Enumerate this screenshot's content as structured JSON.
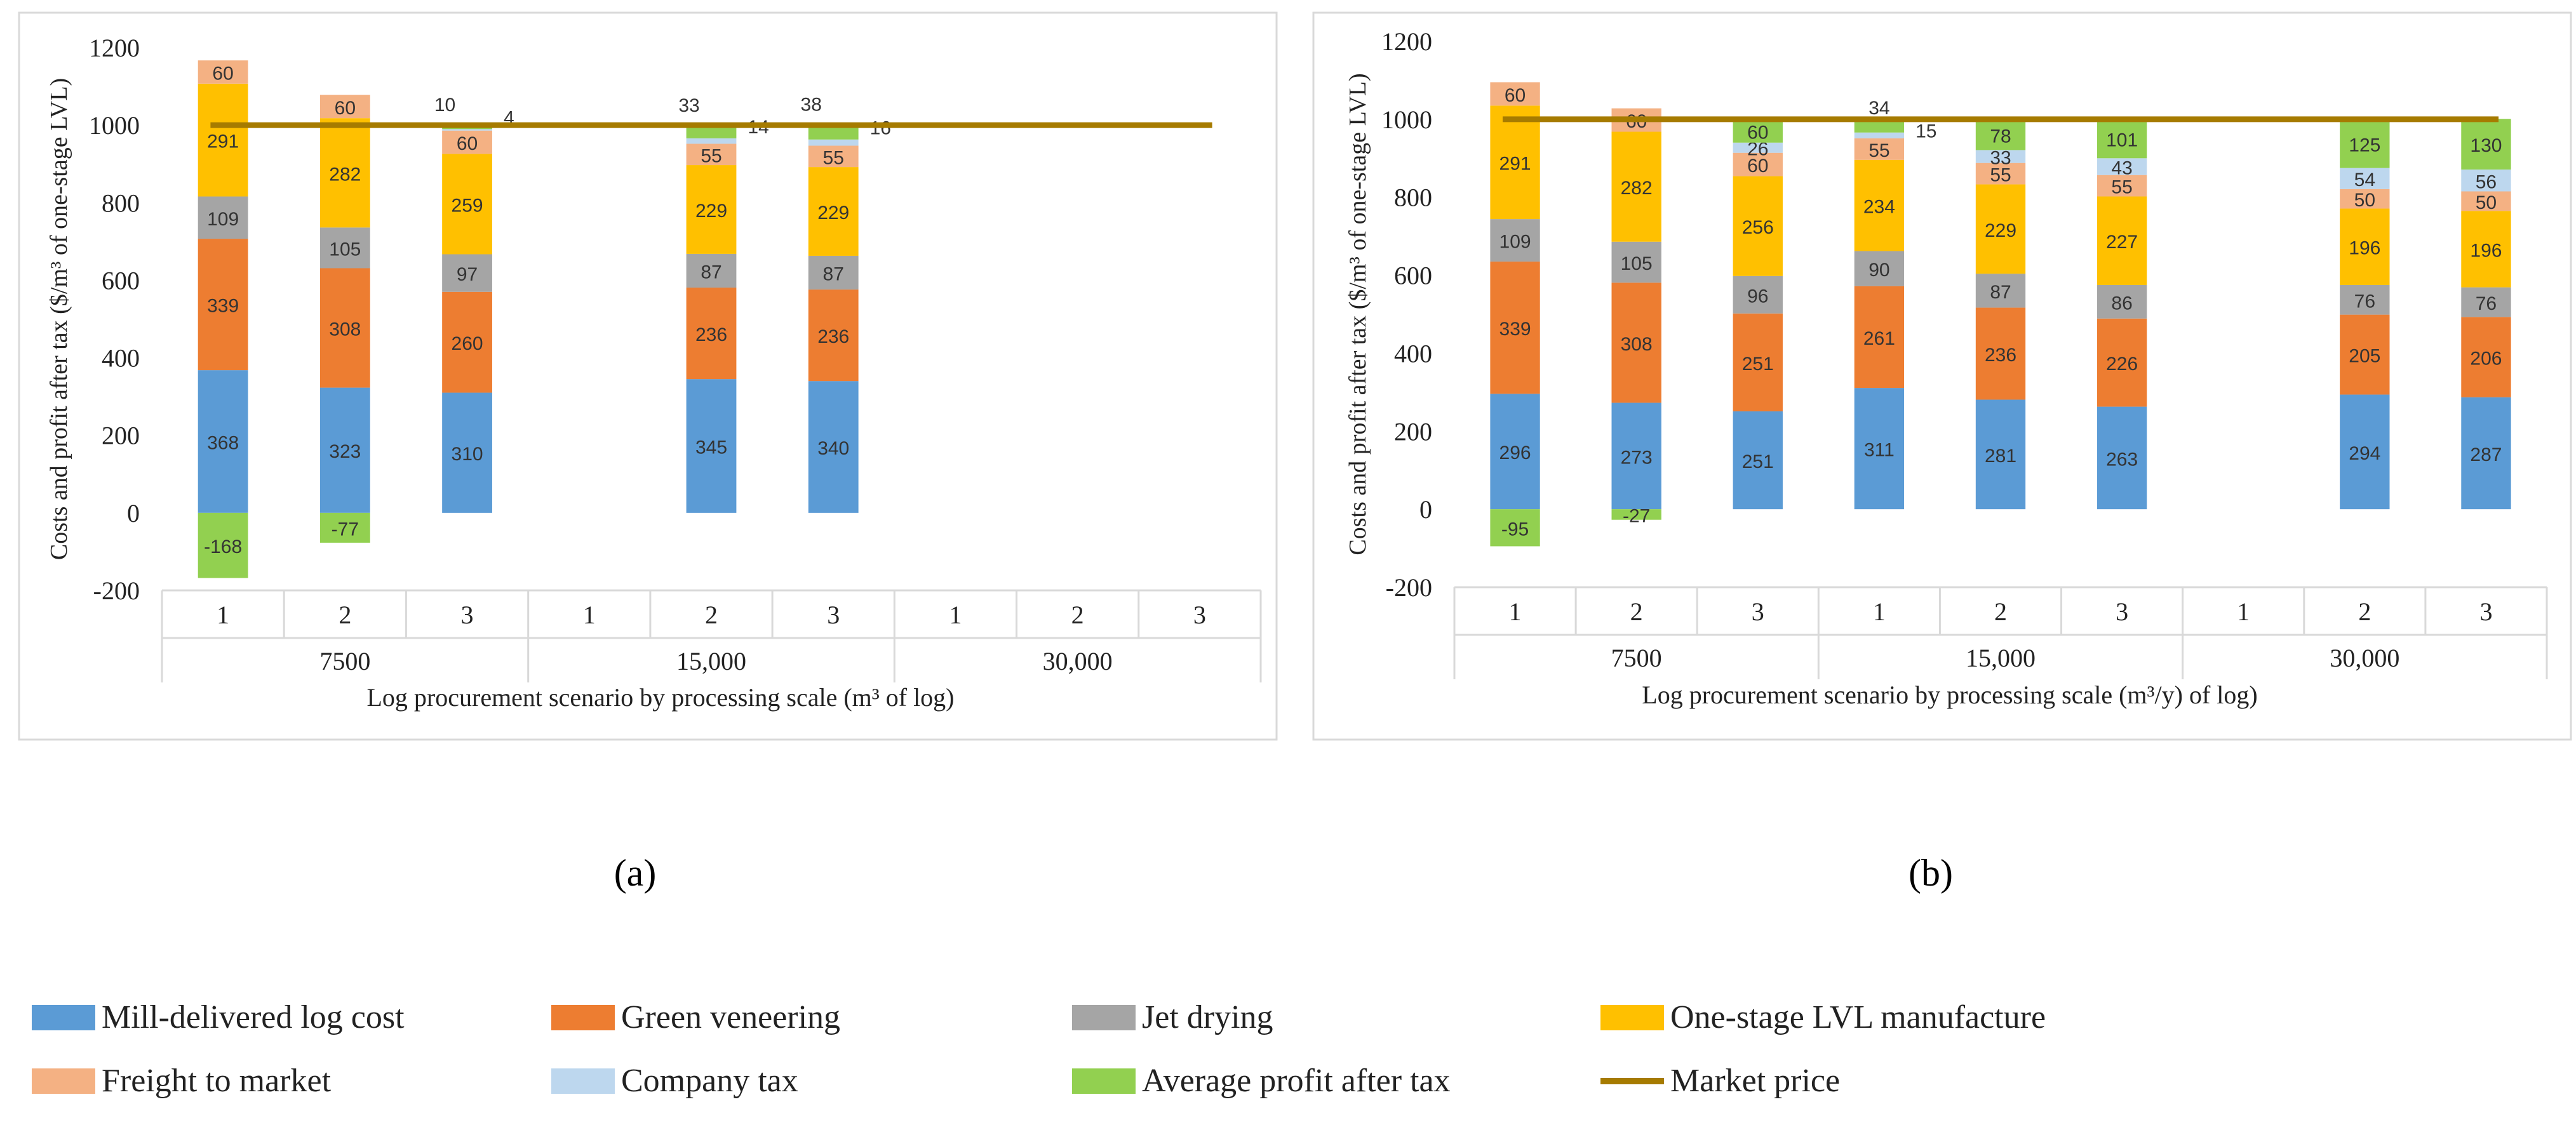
{
  "figure": {
    "panel_labels": [
      "(a)",
      "(b)"
    ],
    "legend": [
      {
        "name": "Mill-delivered log cost",
        "color": "#5b9bd5",
        "kind": "box"
      },
      {
        "name": "Green veneering",
        "color": "#ed7d31",
        "kind": "box"
      },
      {
        "name": "Jet drying",
        "color": "#a5a5a5",
        "kind": "box"
      },
      {
        "name": "One-stage LVL manufacture",
        "color": "#ffc000",
        "kind": "box"
      },
      {
        "name": "Freight to market",
        "color": "#f4b183",
        "kind": "box"
      },
      {
        "name": "Company tax",
        "color": "#bdd7ee",
        "kind": "box"
      },
      {
        "name": "Average profit after tax",
        "color": "#92d050",
        "kind": "box"
      },
      {
        "name": "Market price",
        "color": "#a67b00",
        "kind": "line"
      }
    ]
  },
  "chart_data": [
    {
      "type": "bar",
      "stacked": true,
      "panel": "(a)",
      "ylabel": "Costs and profit after tax ($/m³ of one-stage LVL)",
      "xlabel": "Log procurement scenario by processing scale (m³ of log)",
      "ylim": [
        -200,
        1200
      ],
      "yticks": [
        -200,
        0,
        200,
        400,
        600,
        800,
        1000,
        1200
      ],
      "groups": [
        "7500",
        "15,000",
        "30,000"
      ],
      "categories": [
        "1",
        "2",
        "3",
        "1",
        "2",
        "3",
        "1",
        "2",
        "3"
      ],
      "market_price": 1000,
      "series": [
        {
          "name": "Mill-delivered log cost",
          "color": "#5b9bd5",
          "values": [
            368,
            323,
            310,
            null,
            345,
            340,
            null,
            null,
            null
          ]
        },
        {
          "name": "Green veneering",
          "color": "#ed7d31",
          "values": [
            339,
            308,
            260,
            null,
            236,
            236,
            null,
            null,
            null
          ]
        },
        {
          "name": "Jet drying",
          "color": "#a5a5a5",
          "values": [
            109,
            105,
            97,
            null,
            87,
            87,
            null,
            null,
            null
          ]
        },
        {
          "name": "One-stage LVL manufacture",
          "color": "#ffc000",
          "values": [
            291,
            282,
            259,
            null,
            229,
            229,
            null,
            null,
            null
          ]
        },
        {
          "name": "Freight to market",
          "color": "#f4b183",
          "values": [
            60,
            60,
            60,
            null,
            55,
            55,
            null,
            null,
            null
          ]
        },
        {
          "name": "Company tax",
          "color": "#bdd7ee",
          "values": [
            null,
            null,
            4,
            null,
            14,
            16,
            null,
            null,
            null
          ]
        },
        {
          "name": "Average profit after tax",
          "color": "#92d050",
          "values": [
            -168,
            -77,
            10,
            null,
            33,
            38,
            null,
            null,
            null
          ]
        }
      ]
    },
    {
      "type": "bar",
      "stacked": true,
      "panel": "(b)",
      "ylabel": "Costs and profit after tax ($/m³ of one-stage LVL)",
      "xlabel": "Log procurement scenario by processing scale (m³/y) of log)",
      "ylim": [
        -200,
        1200
      ],
      "yticks": [
        -200,
        0,
        200,
        400,
        600,
        800,
        1000,
        1200
      ],
      "groups": [
        "7500",
        "15,000",
        "30,000"
      ],
      "categories": [
        "1",
        "2",
        "3",
        "1",
        "2",
        "3",
        "1",
        "2",
        "3"
      ],
      "market_price": 1000,
      "series": [
        {
          "name": "Mill-delivered log cost",
          "color": "#5b9bd5",
          "values": [
            296,
            273,
            251,
            311,
            281,
            263,
            null,
            294,
            287
          ]
        },
        {
          "name": "Green veneering",
          "color": "#ed7d31",
          "values": [
            339,
            308,
            251,
            261,
            236,
            226,
            null,
            205,
            206
          ]
        },
        {
          "name": "Jet drying",
          "color": "#a5a5a5",
          "values": [
            109,
            105,
            96,
            90,
            87,
            86,
            null,
            76,
            76
          ]
        },
        {
          "name": "One-stage LVL manufacture",
          "color": "#ffc000",
          "values": [
            291,
            282,
            256,
            234,
            229,
            227,
            null,
            196,
            196
          ]
        },
        {
          "name": "Freight to market",
          "color": "#f4b183",
          "values": [
            60,
            60,
            60,
            55,
            55,
            55,
            null,
            50,
            50
          ]
        },
        {
          "name": "Company tax",
          "color": "#bdd7ee",
          "values": [
            null,
            null,
            26,
            15,
            33,
            43,
            null,
            54,
            56
          ]
        },
        {
          "name": "Average profit after tax",
          "color": "#92d050",
          "values": [
            -95,
            -27,
            60,
            34,
            78,
            101,
            null,
            125,
            130
          ]
        }
      ]
    }
  ]
}
